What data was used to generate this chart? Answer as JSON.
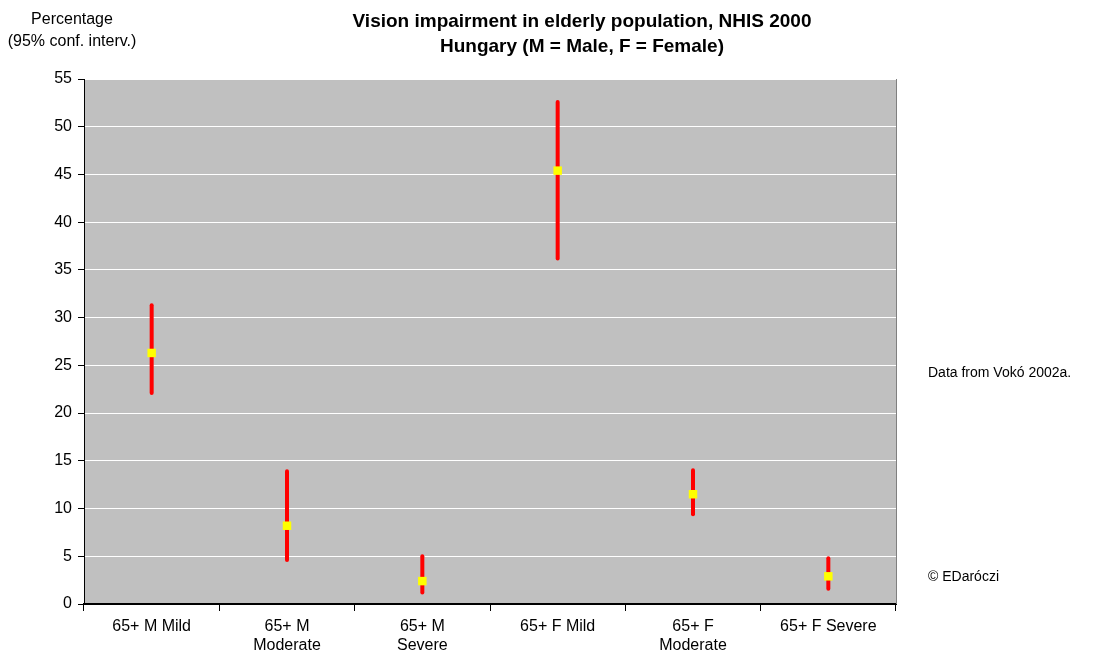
{
  "chart_data": {
    "type": "scatter",
    "title": "Vision impairment in elderly population, NHIS 2000\nHungary (M = Male, F = Female)",
    "ylabel": "Percentage\n(95% conf. interv.)",
    "annotations": [
      "Data from Vokó 2002a.",
      "© EDaróczi"
    ],
    "categories": [
      "65+ M Mild",
      "65+ M Moderate",
      "65+ M Severe",
      "65+ F Mild",
      "65+ F Moderate",
      "65+ F Severe"
    ],
    "values": [
      26.3,
      8.2,
      2.4,
      45.4,
      11.5,
      2.9
    ],
    "errors": [
      [
        22.1,
        31.3
      ],
      [
        4.6,
        13.9
      ],
      [
        1.2,
        5.0
      ],
      [
        36.2,
        52.6
      ],
      [
        9.4,
        14.0
      ],
      [
        1.6,
        4.8
      ]
    ],
    "color": "#ffff00",
    "marker": "square",
    "ylim": [
      0,
      55
    ],
    "yticks": [
      0,
      5,
      10,
      15,
      20,
      25,
      30,
      35,
      40,
      45,
      50,
      55
    ],
    "grid": "y",
    "legend": false
  }
}
